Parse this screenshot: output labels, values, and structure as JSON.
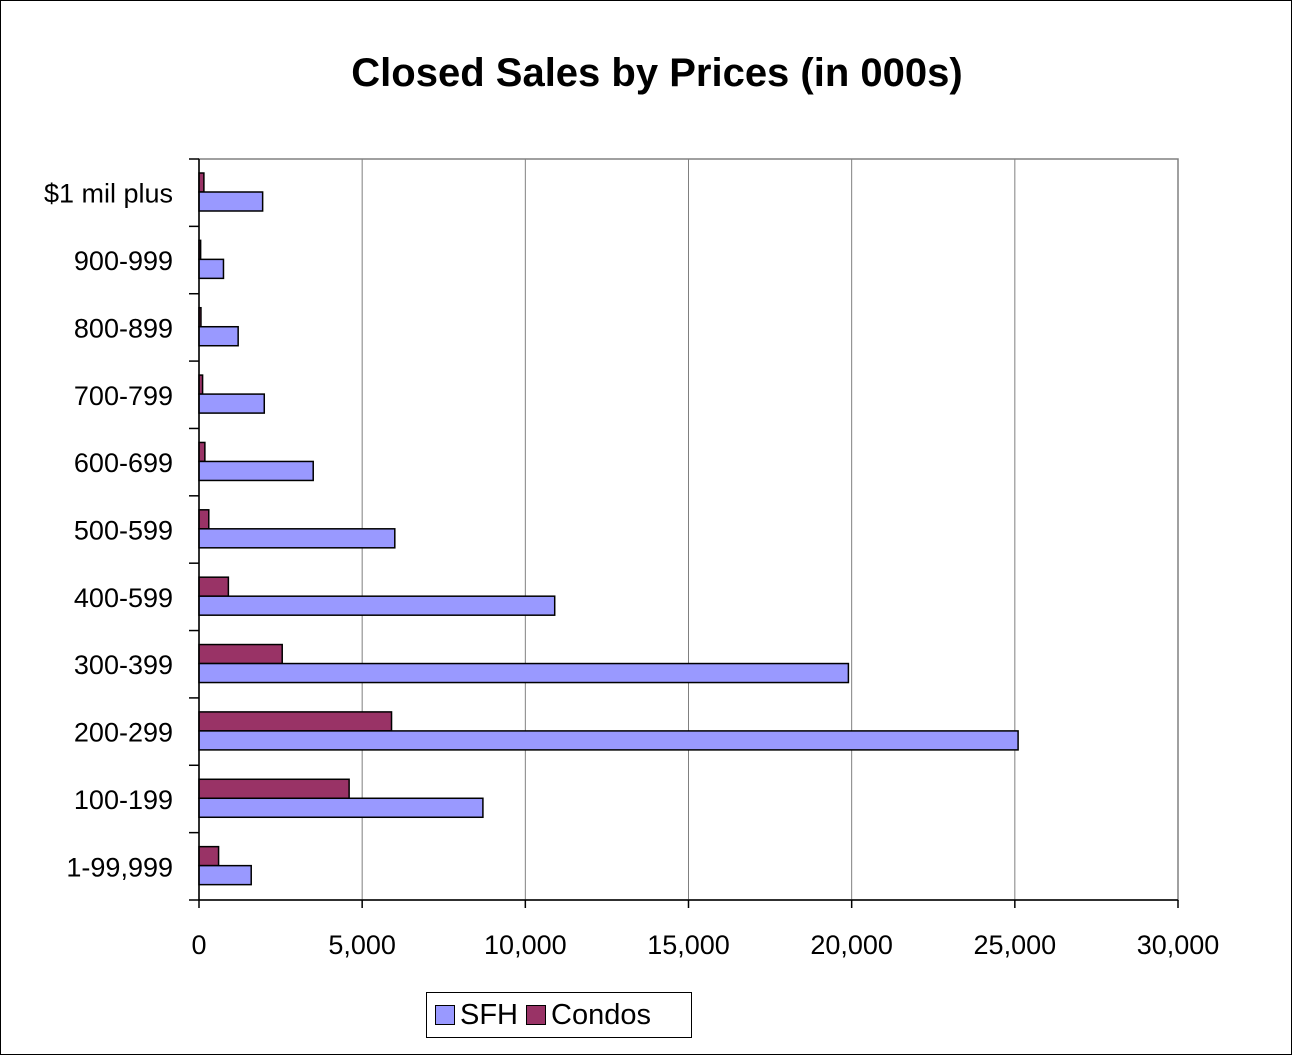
{
  "chart_data": {
    "type": "bar",
    "orientation": "horizontal",
    "title": "Closed Sales by Prices (in 000s)",
    "categories": [
      "1-99,999",
      "100-199",
      "200-299",
      "300-399",
      "400-599",
      "500-599",
      "600-699",
      "700-799",
      "800-899",
      "900-999",
      "$1 mil plus"
    ],
    "series": [
      {
        "name": "SFH",
        "color": "#9999ff",
        "values": [
          1600,
          8700,
          25100,
          19900,
          10900,
          6000,
          3500,
          2000,
          1200,
          750,
          1950
        ]
      },
      {
        "name": "Condos",
        "color": "#993366",
        "values": [
          600,
          4600,
          5900,
          2550,
          900,
          300,
          180,
          110,
          60,
          50,
          150
        ]
      }
    ],
    "xlim": [
      0,
      30000
    ],
    "xticks": [
      0,
      5000,
      10000,
      15000,
      20000,
      25000,
      30000
    ],
    "xtick_labels": [
      "0",
      "5,000",
      "10,000",
      "15,000",
      "20,000",
      "25,000",
      "30,000"
    ],
    "grid": "vertical",
    "legend_position": "bottom"
  }
}
